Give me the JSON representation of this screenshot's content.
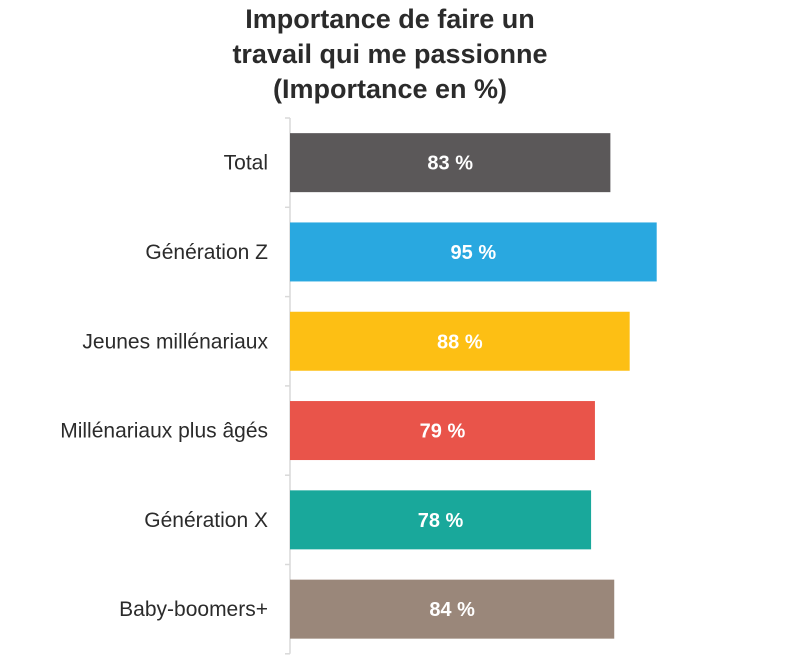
{
  "chart_data": {
    "type": "bar",
    "orientation": "horizontal",
    "title_lines": [
      "Importance de faire un",
      "travail qui me passionne",
      "(Importance en %)"
    ],
    "categories": [
      "Total",
      "Génération Z",
      "Jeunes millénariaux",
      "Millénariaux plus âgés",
      "Génération X",
      "Baby-boomers+"
    ],
    "values": [
      83,
      95,
      88,
      79,
      78,
      84
    ],
    "value_labels": [
      "83 %",
      "95 %",
      "88 %",
      "79 %",
      "78 %",
      "84 %"
    ],
    "colors": [
      "#5b5859",
      "#29a8e0",
      "#fdbf14",
      "#e9544a",
      "#19a89b",
      "#9a877a"
    ],
    "xlim": [
      0,
      100
    ],
    "xlabel": "",
    "ylabel": "",
    "grid": false,
    "legend": "none"
  }
}
